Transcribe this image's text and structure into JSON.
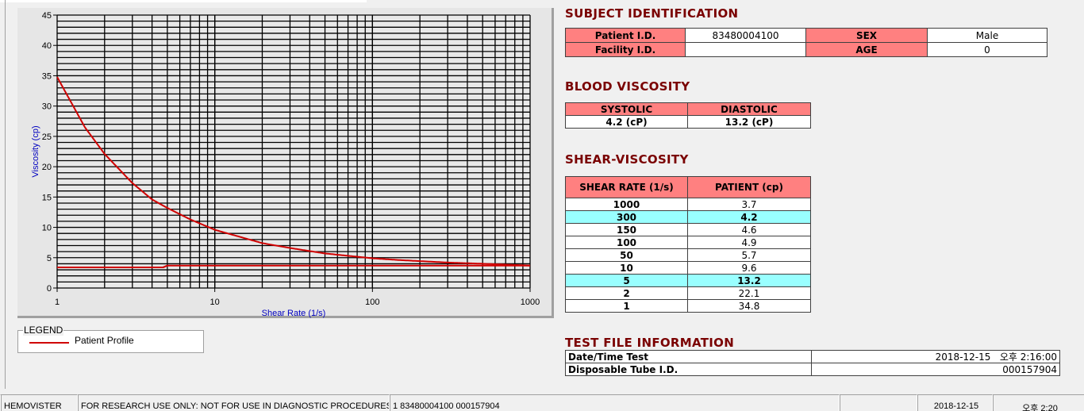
{
  "chart_data": {
    "type": "line",
    "xlabel": "Shear Rate (1/s)",
    "ylabel": "Viscosity (cp)",
    "xscale": "log",
    "xlim": [
      1,
      1000
    ],
    "ylim": [
      0,
      45
    ],
    "xticks": [
      "1",
      "10",
      "100",
      "1000"
    ],
    "yticks": [
      "0",
      "5",
      "10",
      "15",
      "20",
      "25",
      "30",
      "35",
      "40",
      "45"
    ],
    "grid": true,
    "series": [
      {
        "color": "#d00000",
        "x": [
          1,
          1.5,
          2,
          3,
          4,
          5,
          7,
          10,
          20,
          30,
          50,
          100,
          150,
          300,
          500,
          1000
        ],
        "y": [
          34.8,
          26.5,
          22.1,
          17.3,
          14.6,
          13.2,
          11.3,
          9.6,
          7.4,
          6.6,
          5.7,
          4.9,
          4.6,
          4.2,
          4.0,
          3.7
        ]
      },
      {
        "color": "#d00000",
        "x": [
          1,
          4.7,
          5,
          10,
          100,
          1000
        ],
        "y": [
          3.4,
          3.4,
          3.7,
          3.7,
          3.7,
          3.7
        ]
      }
    ]
  },
  "legend": {
    "title": "LEGEND",
    "items": [
      {
        "label": "Patient Profile",
        "color": "#d00000"
      }
    ]
  },
  "subject": {
    "title": "SUBJECT IDENTIFICATION",
    "patient_id_label": "Patient I.D.",
    "patient_id": "83480004100",
    "sex_label": "SEX",
    "sex": "Male",
    "facility_label": "Facility I.D.",
    "facility": "",
    "age_label": "AGE",
    "age": "0"
  },
  "blood": {
    "title": "BLOOD VISCOSITY",
    "systolic_label": "SYSTOLIC",
    "diastolic_label": "DIASTOLIC",
    "systolic": "4.2 (cP)",
    "diastolic": "13.2 (cP)"
  },
  "shear": {
    "title": "SHEAR-VISCOSITY",
    "col1": "SHEAR RATE (1/s)",
    "col2": "PATIENT (cp)",
    "rows": [
      [
        "1000",
        "3.7"
      ],
      [
        "300",
        "4.2"
      ],
      [
        "150",
        "4.6"
      ],
      [
        "100",
        "4.9"
      ],
      [
        "50",
        "5.7"
      ],
      [
        "10",
        "9.6"
      ],
      [
        "5",
        "13.2"
      ],
      [
        "2",
        "22.1"
      ],
      [
        "1",
        "34.8"
      ]
    ],
    "highlight_color": "#99ffff"
  },
  "testfile": {
    "title": "TEST FILE INFORMATION",
    "date_label": "Date/Time Test",
    "date": "2018-12-15   오후 2:16:00",
    "tube_label": "Disposable Tube I.D.",
    "tube": "000157904"
  },
  "status": [
    "HEMOVISTER",
    "FOR RESEARCH USE ONLY: NOT FOR USE IN DIAGNOSTIC PROCEDURES",
    "1  83480004100  000157904",
    "",
    "2018-12-15",
    "오후 2:20"
  ],
  "colors": {
    "header": "#ff8080",
    "title": "#7a0000",
    "axis_label": "#0000c0"
  }
}
